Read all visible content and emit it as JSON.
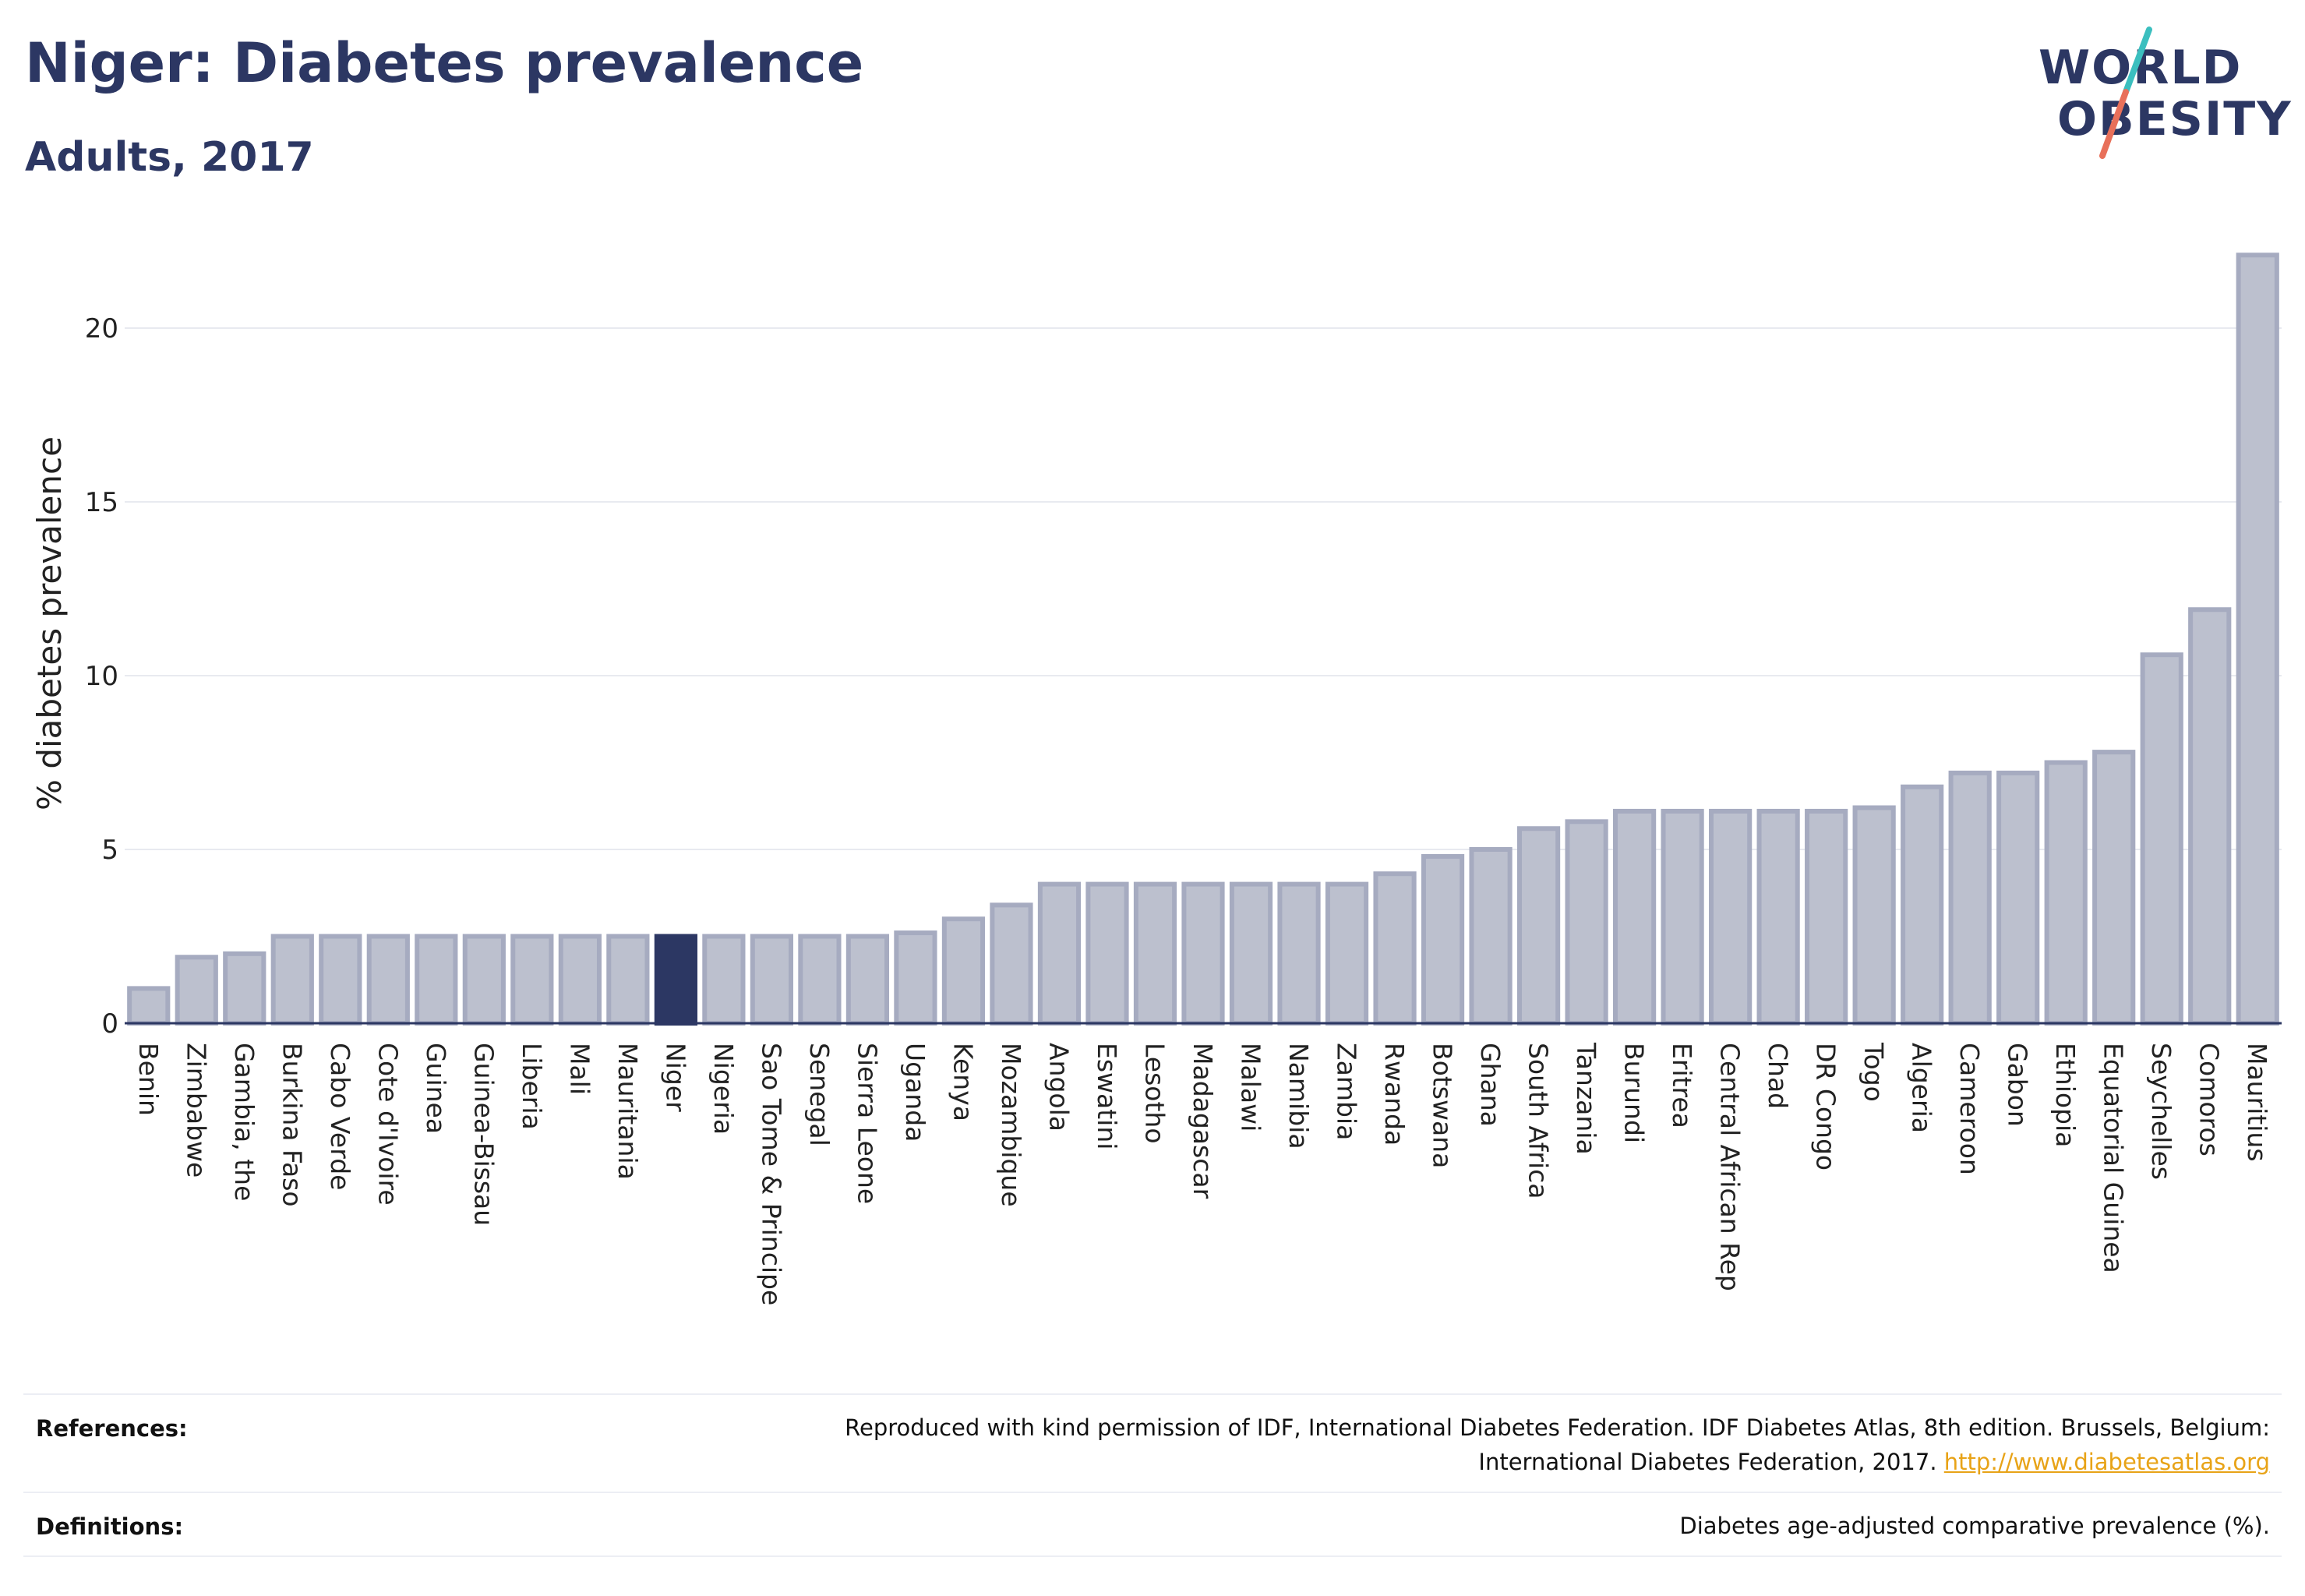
{
  "header": {
    "title": "Niger: Diabetes prevalence",
    "subtitle": "Adults, 2017"
  },
  "logo": {
    "line1": "WORLD",
    "line2": "OBESITY",
    "slash_colors": [
      "#3bbfbf",
      "#e8705a"
    ]
  },
  "colors": {
    "bar_fill": "#bcc0ce",
    "bar_stroke": "#a6abc0",
    "highlight": "#2c3763",
    "grid": "#e8eaf0",
    "axis": "#2c3763",
    "link": "#e8a317"
  },
  "chart_data": {
    "type": "bar",
    "title": "Niger: Diabetes prevalence",
    "subtitle": "Adults, 2017",
    "xlabel": "",
    "ylabel": "% diabetes prevalence",
    "ylim": [
      0,
      22.6
    ],
    "yticks": [
      0,
      5,
      10,
      15,
      20
    ],
    "grid": true,
    "highlight_category": "Niger",
    "categories": [
      "Benin",
      "Zimbabwe",
      "Gambia, the",
      "Burkina Faso",
      "Cabo Verde",
      "Cote d'Ivoire",
      "Guinea",
      "Guinea-Bissau",
      "Liberia",
      "Mali",
      "Mauritania",
      "Niger",
      "Nigeria",
      "Sao Tome & Principe",
      "Senegal",
      "Sierra Leone",
      "Uganda",
      "Kenya",
      "Mozambique",
      "Angola",
      "Eswatini",
      "Lesotho",
      "Madagascar",
      "Malawi",
      "Namibia",
      "Zambia",
      "Rwanda",
      "Botswana",
      "Ghana",
      "South Africa",
      "Tanzania",
      "Burundi",
      "Eritrea",
      "Central African Rep",
      "Chad",
      "DR Congo",
      "Togo",
      "Algeria",
      "Cameroon",
      "Gabon",
      "Ethiopia",
      "Equatorial Guinea",
      "Seychelles",
      "Comoros",
      "Mauritius"
    ],
    "values": [
      1.0,
      1.9,
      2.0,
      2.5,
      2.5,
      2.5,
      2.5,
      2.5,
      2.5,
      2.5,
      2.5,
      2.5,
      2.5,
      2.5,
      2.5,
      2.5,
      2.6,
      3.0,
      3.4,
      4.0,
      4.0,
      4.0,
      4.0,
      4.0,
      4.0,
      4.0,
      4.3,
      4.8,
      5.0,
      5.6,
      5.8,
      6.1,
      6.1,
      6.1,
      6.1,
      6.1,
      6.2,
      6.8,
      7.2,
      7.2,
      7.5,
      7.8,
      10.6,
      11.9,
      22.1
    ]
  },
  "footer": {
    "references_label": "References:",
    "references_text_1": "Reproduced with kind permission of IDF, International Diabetes Federation. IDF Diabetes Atlas, 8th edition. Brussels, Belgium:",
    "references_text_2": "International Diabetes Federation, 2017.",
    "references_link": "http://www.diabetesatlas.org",
    "definitions_label": "Definitions:",
    "definitions_text": "Diabetes age-adjusted comparative prevalence (%)."
  }
}
